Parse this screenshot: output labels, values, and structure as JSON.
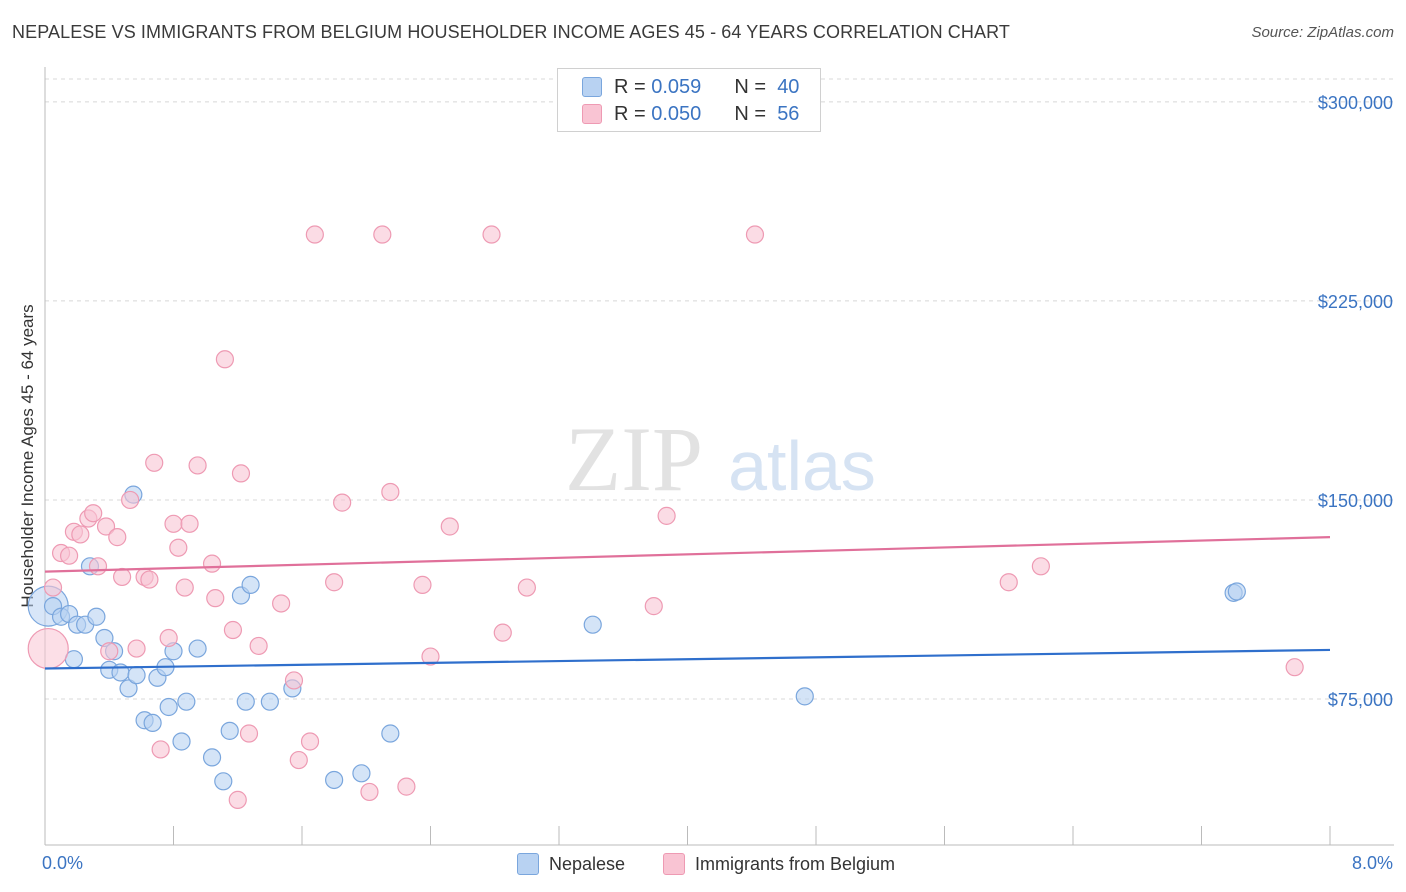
{
  "header": {
    "title": "NEPALESE VS IMMIGRANTS FROM BELGIUM HOUSEHOLDER INCOME AGES 45 - 64 YEARS CORRELATION CHART",
    "source": "Source: ZipAtlas.com"
  },
  "watermark": {
    "zip": "ZIP",
    "atlas": "atlas"
  },
  "legend": {
    "series1": {
      "r_label": "R =",
      "r_value": "0.059",
      "n_label": "N =",
      "n_value": "40"
    },
    "series2": {
      "r_label": "R =",
      "r_value": "0.050",
      "n_label": "N =",
      "n_value": "56"
    }
  },
  "colors": {
    "nepalese_fill": "#b8d2f2",
    "nepalese_stroke": "#7aa6dd",
    "nepalese_line": "#2f6fcc",
    "belgium_fill": "#f9c4d3",
    "belgium_stroke": "#ee9ab3",
    "belgium_line": "#e0709a",
    "axis_value": "#3b74c2",
    "grid": "#d8d8d8"
  },
  "chart_data": {
    "type": "scatter",
    "title": "NEPALESE VS IMMIGRANTS FROM BELGIUM HOUSEHOLDER INCOME AGES 45 - 64 YEARS CORRELATION CHART",
    "xlabel": "",
    "ylabel": "Householder Income Ages 45 - 64 years",
    "xlim": [
      0,
      8
    ],
    "ylim": [
      20000,
      315000
    ],
    "x_tick_labels": [
      "0.0%",
      "8.0%"
    ],
    "y_ticks": [
      75000,
      150000,
      225000,
      300000
    ],
    "y_tick_labels": [
      "$75,000",
      "$150,000",
      "$225,000",
      "$300,000"
    ],
    "legend_position": "top-center",
    "series": [
      {
        "name": "Nepalese",
        "r": 0.059,
        "n": 40,
        "trend": {
          "x": [
            0,
            8
          ],
          "y": [
            86500,
            93500
          ]
        },
        "points": [
          {
            "x": 0.02,
            "y": 110000,
            "big": true
          },
          {
            "x": 0.05,
            "y": 110000
          },
          {
            "x": 0.1,
            "y": 106000
          },
          {
            "x": 0.15,
            "y": 107000
          },
          {
            "x": 0.18,
            "y": 90000
          },
          {
            "x": 0.2,
            "y": 103000
          },
          {
            "x": 0.25,
            "y": 103000
          },
          {
            "x": 0.28,
            "y": 125000
          },
          {
            "x": 0.32,
            "y": 106000
          },
          {
            "x": 0.37,
            "y": 98000
          },
          {
            "x": 0.4,
            "y": 86000
          },
          {
            "x": 0.43,
            "y": 93000
          },
          {
            "x": 0.47,
            "y": 85000
          },
          {
            "x": 0.52,
            "y": 79000
          },
          {
            "x": 0.55,
            "y": 152000
          },
          {
            "x": 0.57,
            "y": 84000
          },
          {
            "x": 0.62,
            "y": 67000
          },
          {
            "x": 0.67,
            "y": 66000
          },
          {
            "x": 0.7,
            "y": 83000
          },
          {
            "x": 0.75,
            "y": 87000
          },
          {
            "x": 0.77,
            "y": 72000
          },
          {
            "x": 0.8,
            "y": 93000
          },
          {
            "x": 0.85,
            "y": 59000
          },
          {
            "x": 0.88,
            "y": 74000
          },
          {
            "x": 0.95,
            "y": 94000
          },
          {
            "x": 1.04,
            "y": 53000
          },
          {
            "x": 1.11,
            "y": 44000
          },
          {
            "x": 1.15,
            "y": 63000
          },
          {
            "x": 1.22,
            "y": 114000
          },
          {
            "x": 1.25,
            "y": 74000
          },
          {
            "x": 1.28,
            "y": 118000
          },
          {
            "x": 1.4,
            "y": 74000
          },
          {
            "x": 1.54,
            "y": 79000
          },
          {
            "x": 1.8,
            "y": 44500
          },
          {
            "x": 1.97,
            "y": 47000
          },
          {
            "x": 2.15,
            "y": 62000
          },
          {
            "x": 3.41,
            "y": 103000
          },
          {
            "x": 4.73,
            "y": 76000
          },
          {
            "x": 7.4,
            "y": 115000
          },
          {
            "x": 7.42,
            "y": 115500
          }
        ]
      },
      {
        "name": "Immigrants from Belgium",
        "r": 0.05,
        "n": 56,
        "trend": {
          "x": [
            0,
            8
          ],
          "y": [
            123000,
            136000
          ]
        },
        "points": [
          {
            "x": 0.02,
            "y": 94000,
            "big": true
          },
          {
            "x": 0.05,
            "y": 117000
          },
          {
            "x": 0.1,
            "y": 130000
          },
          {
            "x": 0.15,
            "y": 129000
          },
          {
            "x": 0.18,
            "y": 138000
          },
          {
            "x": 0.22,
            "y": 137000
          },
          {
            "x": 0.27,
            "y": 143000
          },
          {
            "x": 0.3,
            "y": 145000
          },
          {
            "x": 0.33,
            "y": 125000
          },
          {
            "x": 0.38,
            "y": 140000
          },
          {
            "x": 0.4,
            "y": 93000
          },
          {
            "x": 0.45,
            "y": 136000
          },
          {
            "x": 0.48,
            "y": 121000
          },
          {
            "x": 0.53,
            "y": 150000
          },
          {
            "x": 0.57,
            "y": 94000
          },
          {
            "x": 0.62,
            "y": 121000
          },
          {
            "x": 0.65,
            "y": 120000
          },
          {
            "x": 0.68,
            "y": 164000
          },
          {
            "x": 0.72,
            "y": 56000
          },
          {
            "x": 0.77,
            "y": 98000
          },
          {
            "x": 0.8,
            "y": 141000
          },
          {
            "x": 0.83,
            "y": 132000
          },
          {
            "x": 0.87,
            "y": 117000
          },
          {
            "x": 0.9,
            "y": 141000
          },
          {
            "x": 0.95,
            "y": 163000
          },
          {
            "x": 1.04,
            "y": 126000
          },
          {
            "x": 1.06,
            "y": 113000
          },
          {
            "x": 1.12,
            "y": 203000
          },
          {
            "x": 1.17,
            "y": 101000
          },
          {
            "x": 1.2,
            "y": 37000
          },
          {
            "x": 1.22,
            "y": 160000
          },
          {
            "x": 1.27,
            "y": 62000
          },
          {
            "x": 1.33,
            "y": 95000
          },
          {
            "x": 1.47,
            "y": 111000
          },
          {
            "x": 1.55,
            "y": 82000
          },
          {
            "x": 1.58,
            "y": 52000
          },
          {
            "x": 1.65,
            "y": 59000
          },
          {
            "x": 1.68,
            "y": 250000
          },
          {
            "x": 1.8,
            "y": 119000
          },
          {
            "x": 1.85,
            "y": 149000
          },
          {
            "x": 2.02,
            "y": 40000
          },
          {
            "x": 2.1,
            "y": 250000
          },
          {
            "x": 2.15,
            "y": 153000
          },
          {
            "x": 2.25,
            "y": 42000
          },
          {
            "x": 2.35,
            "y": 118000
          },
          {
            "x": 2.4,
            "y": 91000
          },
          {
            "x": 2.52,
            "y": 140000
          },
          {
            "x": 2.78,
            "y": 250000
          },
          {
            "x": 2.85,
            "y": 100000
          },
          {
            "x": 3.0,
            "y": 117000
          },
          {
            "x": 3.79,
            "y": 110000
          },
          {
            "x": 3.87,
            "y": 144000
          },
          {
            "x": 4.42,
            "y": 250000
          },
          {
            "x": 6.0,
            "y": 119000
          },
          {
            "x": 6.2,
            "y": 125000
          },
          {
            "x": 7.78,
            "y": 87000
          }
        ]
      }
    ]
  }
}
